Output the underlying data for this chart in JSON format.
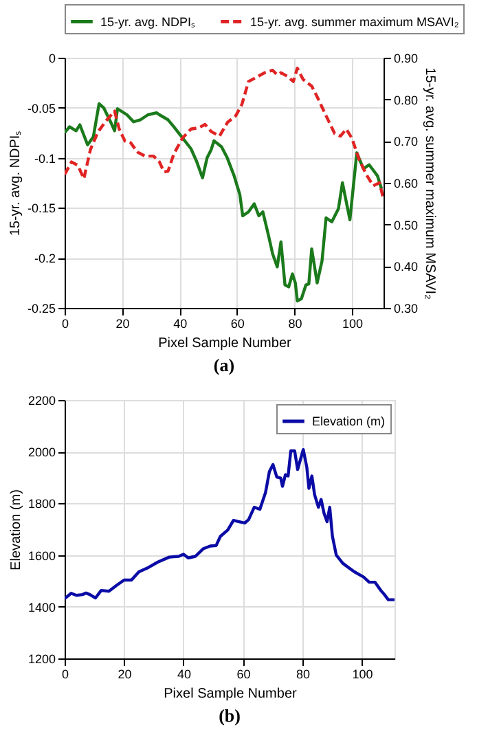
{
  "chart_data": [
    {
      "type": "line",
      "xlabel": "Pixel Sample Number",
      "ylabel": "15-yr. avg. NDPIₛ",
      "y2label": "15-yr. avg. summer maximum MSAVI₂",
      "xlim": [
        0,
        111
      ],
      "xticks": [
        0,
        20,
        40,
        60,
        80,
        100
      ],
      "ylim": [
        -0.25,
        0
      ],
      "yticks": [
        -0.25,
        -0.2,
        -0.15,
        -0.1,
        -0.05,
        0
      ],
      "y2lim": [
        0.3,
        0.9
      ],
      "y2ticks": [
        {
          "value": 0.3,
          "label": "0.30"
        },
        {
          "value": 0.4,
          "label": "0.40"
        },
        {
          "value": 0.5,
          "label": "0.50"
        },
        {
          "value": 0.6,
          "label": "0.60"
        },
        {
          "value": 0.7,
          "label": "0.70"
        },
        {
          "value": 0.8,
          "label": "0.80"
        },
        {
          "value": 0.9,
          "label": "0.90"
        }
      ],
      "grid": true,
      "legend": "top",
      "annotations": [
        "(a)"
      ],
      "series": [
        {
          "name": "15-yr. avg. NDPIₛ",
          "color": "#1b7a1b",
          "line_style": "solid",
          "x": [
            0,
            1.7,
            4,
            5.3,
            8,
            10,
            12,
            13.6,
            16,
            17.4,
            18.4,
            21.7,
            24,
            26.4,
            29,
            32,
            33,
            36,
            38,
            41,
            44,
            46,
            48,
            49.6,
            51,
            52,
            54.6,
            56.6,
            59,
            61,
            62,
            64,
            66,
            67.6,
            69,
            71,
            72.4,
            74,
            75.3,
            76.7,
            78,
            79.3,
            80.3,
            81,
            82.4,
            84,
            85,
            86,
            87.9,
            89.6,
            91,
            93,
            95.3,
            96.7,
            99.3,
            101.7,
            104,
            106,
            108.9,
            110.3
          ],
          "values": [
            -0.075,
            -0.069,
            -0.073,
            -0.067,
            -0.087,
            -0.079,
            -0.046,
            -0.05,
            -0.064,
            -0.073,
            -0.051,
            -0.057,
            -0.064,
            -0.062,
            -0.057,
            -0.055,
            -0.057,
            -0.062,
            -0.069,
            -0.08,
            -0.091,
            -0.104,
            -0.12,
            -0.1,
            -0.092,
            -0.083,
            -0.089,
            -0.1,
            -0.118,
            -0.137,
            -0.158,
            -0.154,
            -0.146,
            -0.158,
            -0.154,
            -0.178,
            -0.196,
            -0.209,
            -0.184,
            -0.227,
            -0.229,
            -0.216,
            -0.225,
            -0.243,
            -0.241,
            -0.227,
            -0.226,
            -0.191,
            -0.225,
            -0.203,
            -0.16,
            -0.164,
            -0.151,
            -0.125,
            -0.162,
            -0.095,
            -0.111,
            -0.107,
            -0.118,
            -0.131
          ]
        },
        {
          "name": "15-yr. avg. summer maximum MSAVI₂",
          "color": "#e02424",
          "line_style": "dashed",
          "axis": "y2",
          "x": [
            0,
            2.4,
            4.6,
            6.7,
            9,
            11.7,
            14.6,
            17.4,
            19,
            21,
            23,
            25.3,
            28,
            31,
            33,
            34.6,
            36,
            38,
            41,
            44,
            46.7,
            48.9,
            51,
            53.9,
            56.7,
            59.6,
            61.7,
            64,
            66.7,
            69.6,
            72.4,
            74,
            75.3,
            77.4,
            79.6,
            81,
            83,
            86,
            88,
            91,
            94,
            96,
            98,
            100,
            102.4,
            105,
            107.4,
            109.6,
            111
          ],
          "values": [
            0.62,
            0.65,
            0.642,
            0.61,
            0.68,
            0.723,
            0.75,
            0.772,
            0.729,
            0.7,
            0.696,
            0.674,
            0.664,
            0.664,
            0.65,
            0.626,
            0.628,
            0.669,
            0.707,
            0.729,
            0.732,
            0.74,
            0.723,
            0.712,
            0.745,
            0.761,
            0.788,
            0.843,
            0.853,
            0.864,
            0.87,
            0.859,
            0.864,
            0.856,
            0.843,
            0.875,
            0.848,
            0.832,
            0.805,
            0.761,
            0.718,
            0.712,
            0.729,
            0.707,
            0.658,
            0.62,
            0.593,
            0.6,
            0.56
          ]
        }
      ]
    },
    {
      "type": "line",
      "xlabel": "Pixel Sample Number",
      "ylabel": "Elevation (m)",
      "xlim": [
        0,
        111
      ],
      "xticks": [
        0,
        20,
        40,
        60,
        80,
        100
      ],
      "ylim": [
        1200,
        2200
      ],
      "yticks": [
        1200,
        1400,
        1600,
        1800,
        2000,
        2200
      ],
      "grid": true,
      "legend": "top right",
      "annotations": [
        "(b)"
      ],
      "series": [
        {
          "name": "Elevation (m)",
          "color": "#0b0ba6",
          "line_style": "solid",
          "x": [
            0,
            2.2,
            4,
            6,
            7.2,
            8.5,
            10.4,
            12.3,
            14.9,
            17.4,
            20,
            22.5,
            25,
            28.2,
            31.4,
            35.2,
            38.4,
            40,
            41.6,
            44,
            46.6,
            49,
            51,
            52.4,
            54.9,
            56.8,
            58.7,
            60.6,
            61.9,
            63.8,
            65.7,
            67.6,
            68.9,
            70.1,
            71.4,
            72.7,
            73.3,
            74.3,
            75.2,
            76.1,
            77.4,
            78.4,
            80.3,
            81.5,
            82.2,
            83.2,
            84.1,
            85.4,
            86.3,
            87.3,
            88.3,
            89.2,
            90.1,
            91.4,
            93.6,
            97.5,
            100.6,
            102.5,
            104.4,
            106.4,
            107.6,
            108.9,
            111
          ],
          "values": [
            1431,
            1452,
            1444,
            1447,
            1453,
            1447,
            1434,
            1463,
            1460,
            1482,
            1503,
            1503,
            1535,
            1552,
            1573,
            1592,
            1595,
            1603,
            1589,
            1595,
            1624,
            1635,
            1637,
            1672,
            1697,
            1734,
            1729,
            1724,
            1737,
            1785,
            1777,
            1842,
            1923,
            1950,
            1902,
            1898,
            1866,
            1911,
            1906,
            2003,
            2003,
            1931,
            2008,
            1939,
            1858,
            1906,
            1834,
            1785,
            1815,
            1761,
            1729,
            1785,
            1673,
            1600,
            1568,
            1535,
            1515,
            1495,
            1495,
            1463,
            1447,
            1427,
            1427
          ]
        }
      ]
    }
  ]
}
